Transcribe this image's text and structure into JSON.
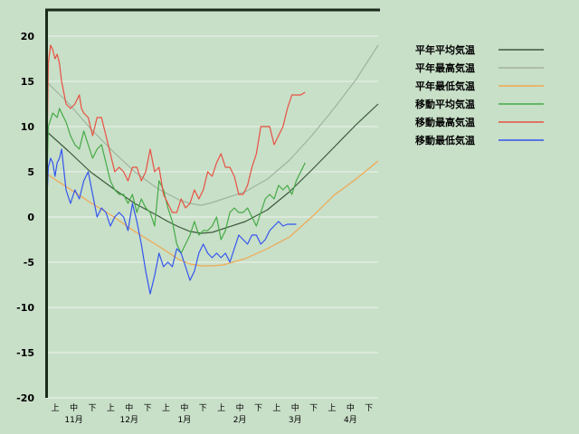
{
  "chart_data": {
    "type": "line",
    "title": "",
    "xlabel": "",
    "ylabel": "",
    "ylim": [
      -20,
      23
    ],
    "y_ticks": [
      20,
      15,
      10,
      5,
      0,
      -5,
      -10,
      -15,
      -20
    ],
    "x_days": [
      0,
      150
    ],
    "grid": true,
    "legend_position": "right",
    "period_labels": [
      "上",
      "中",
      "下",
      "上",
      "中",
      "下",
      "上",
      "中",
      "下",
      "上",
      "中",
      "下",
      "上",
      "中",
      "下",
      "上",
      "中",
      "下"
    ],
    "month_labels": [
      "11月",
      "12月",
      "1月",
      "2月",
      "3月",
      "4月"
    ],
    "series": [
      {
        "name": "平年平均気温",
        "color": "#3a5a3a",
        "x": [
          0,
          10,
          20,
          30,
          40,
          50,
          55,
          60,
          65,
          70,
          75,
          80,
          90,
          100,
          110,
          120,
          130,
          140,
          150
        ],
        "y": [
          9.5,
          7.3,
          5.0,
          3.2,
          1.5,
          0.2,
          -0.5,
          -1.1,
          -1.6,
          -1.8,
          -1.7,
          -1.3,
          -0.5,
          0.8,
          2.8,
          5.2,
          7.7,
          10.2,
          12.5
        ]
      },
      {
        "name": "平年最高気温",
        "color": "#a0b4a0",
        "x": [
          0,
          10,
          20,
          30,
          40,
          50,
          60,
          65,
          70,
          75,
          80,
          90,
          100,
          110,
          120,
          130,
          140,
          150
        ],
        "y": [
          15.0,
          12.6,
          9.8,
          7.3,
          5.0,
          3.2,
          1.9,
          1.5,
          1.3,
          1.6,
          2.0,
          2.8,
          4.2,
          6.3,
          9.0,
          12.0,
          15.2,
          19.0
        ]
      },
      {
        "name": "平年最低気温",
        "color": "#f0a850",
        "x": [
          0,
          10,
          20,
          30,
          40,
          50,
          55,
          60,
          65,
          70,
          75,
          80,
          90,
          100,
          110,
          120,
          130,
          140,
          150
        ],
        "y": [
          4.8,
          3.2,
          1.6,
          0.1,
          -1.6,
          -3.1,
          -3.9,
          -4.7,
          -5.2,
          -5.4,
          -5.4,
          -5.3,
          -4.6,
          -3.5,
          -2.2,
          0.0,
          2.4,
          4.2,
          6.2
        ]
      },
      {
        "name": "移動平均気温",
        "color": "#44aa44",
        "x": [
          0,
          1,
          3,
          5,
          6,
          7,
          9,
          11,
          13,
          15,
          17,
          19,
          21,
          23,
          25,
          27,
          29,
          31,
          33,
          35,
          37,
          39,
          41,
          43,
          45,
          47,
          49,
          51,
          53,
          55,
          57,
          59,
          61,
          63,
          65,
          67,
          69,
          71,
          73,
          75,
          77,
          79,
          81,
          83,
          85,
          87,
          89,
          91,
          93,
          95,
          97,
          99,
          101,
          103,
          105,
          107,
          109,
          111,
          113,
          115,
          117
        ],
        "y": [
          0,
          10,
          11.5,
          11,
          12,
          11.5,
          10.5,
          9,
          8,
          7.5,
          9.5,
          8,
          6.5,
          7.5,
          8,
          6,
          4,
          3,
          2.5,
          2.5,
          1.5,
          2.5,
          0.5,
          2,
          1,
          0.5,
          -1,
          4,
          3,
          1,
          -0.5,
          -3,
          -4,
          -3,
          -2,
          -0.5,
          -2,
          -1.5,
          -1.5,
          -1,
          0,
          -2.5,
          -1.5,
          0.5,
          1,
          0.5,
          0.5,
          1,
          0,
          -1,
          0.5,
          2,
          2.5,
          2,
          3.5,
          3,
          3.5,
          2.5,
          4,
          5,
          6
        ]
      },
      {
        "name": "移動最高気温",
        "color": "#e85040",
        "x": [
          0,
          1,
          2,
          3,
          4,
          5,
          6,
          7,
          9,
          11,
          13,
          15,
          16,
          17,
          19,
          21,
          23,
          25,
          27,
          29,
          31,
          33,
          35,
          37,
          39,
          41,
          43,
          45,
          47,
          49,
          51,
          53,
          55,
          57,
          59,
          61,
          63,
          65,
          67,
          69,
          71,
          73,
          75,
          77,
          79,
          81,
          83,
          85,
          87,
          89,
          91,
          93,
          95,
          97,
          99,
          101,
          103,
          105,
          107,
          109,
          111,
          113,
          115,
          117
        ],
        "y": [
          0,
          17,
          19,
          18.5,
          17.5,
          18,
          17,
          15,
          12.5,
          12,
          12.5,
          13.5,
          12,
          11.5,
          11,
          9,
          11,
          11,
          9,
          7,
          5,
          5.5,
          5,
          4,
          5.5,
          5.5,
          4,
          5,
          7.5,
          5,
          5.5,
          2.5,
          1.5,
          0.5,
          0.5,
          2,
          1,
          1.5,
          3,
          2,
          3,
          5,
          4.5,
          6,
          7,
          5.5,
          5.5,
          4.5,
          2.5,
          2.5,
          3.5,
          5.5,
          7,
          10,
          10,
          10,
          8,
          9,
          10,
          12,
          13.5,
          13.5,
          13.5,
          13.8
        ]
      },
      {
        "name": "移動最低気温",
        "color": "#3355ee",
        "x": [
          0,
          1,
          2,
          3,
          4,
          5,
          6,
          7,
          9,
          11,
          13,
          15,
          17,
          19,
          21,
          23,
          25,
          27,
          29,
          31,
          33,
          35,
          37,
          39,
          41,
          43,
          45,
          47,
          49,
          51,
          53,
          55,
          57,
          59,
          61,
          63,
          65,
          67,
          69,
          71,
          73,
          75,
          77,
          79,
          81,
          83,
          85,
          87,
          89,
          91,
          93,
          95,
          97,
          99,
          101,
          103,
          105,
          107,
          109,
          111,
          113
        ],
        "y": [
          0,
          5.5,
          6.5,
          6,
          4.5,
          6,
          6.5,
          7.5,
          3,
          1.5,
          3,
          2,
          4,
          5,
          2.5,
          0,
          1,
          0.5,
          -1,
          0,
          0.5,
          0,
          -1.5,
          1.5,
          -0.5,
          -3,
          -6,
          -8.5,
          -6.5,
          -4,
          -5.5,
          -5,
          -5.5,
          -3.5,
          -4,
          -5.5,
          -7,
          -6,
          -4,
          -3,
          -4,
          -4.5,
          -4,
          -4.5,
          -4,
          -5,
          -3.5,
          -2,
          -2.5,
          -3,
          -2,
          -2,
          -3,
          -2.5,
          -1.5,
          -1,
          -0.5,
          -1,
          -0.8,
          -0.8,
          -0.8
        ]
      }
    ]
  }
}
